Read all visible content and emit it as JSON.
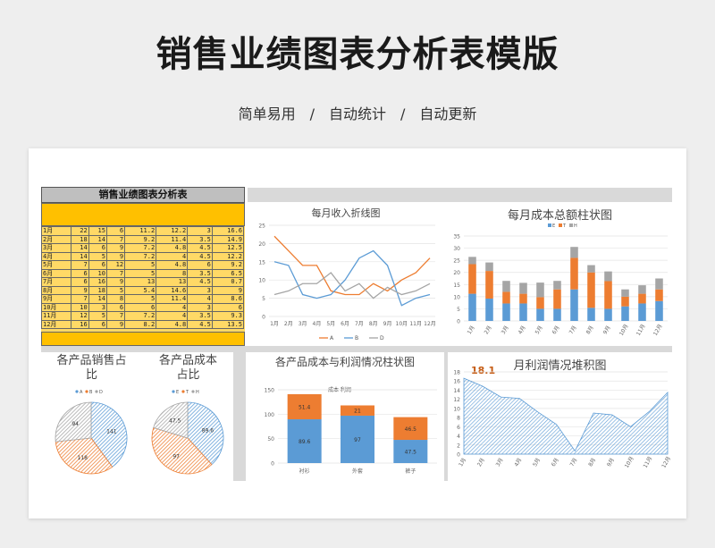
{
  "page": {
    "title": "销售业绩图表分析表模版",
    "subtitle": "简单易用　/　自动统计　/　自动更新"
  },
  "table": {
    "title": "销售业绩图表分析表",
    "rows": [
      [
        "1月",
        "22",
        "15",
        "6",
        "11.2",
        "12.2",
        "3",
        "16.6"
      ],
      [
        "2月",
        "18",
        "14",
        "7",
        "9.2",
        "11.4",
        "3.5",
        "14.9"
      ],
      [
        "3月",
        "14",
        "6",
        "9",
        "7.2",
        "4.8",
        "4.5",
        "12.5"
      ],
      [
        "4月",
        "14",
        "5",
        "9",
        "7.2",
        "4",
        "4.5",
        "12.2"
      ],
      [
        "5月",
        "7",
        "6",
        "12",
        "5",
        "4.8",
        "6",
        "9.2"
      ],
      [
        "6月",
        "6",
        "10",
        "7",
        "5",
        "8",
        "3.5",
        "6.5"
      ],
      [
        "7月",
        "6",
        "16",
        "9",
        "13",
        "13",
        "4.5",
        "0.7"
      ],
      [
        "8月",
        "9",
        "18",
        "5",
        "5.4",
        "14.6",
        "3",
        "9"
      ],
      [
        "9月",
        "7",
        "14",
        "8",
        "5",
        "11.4",
        "4",
        "8.6"
      ],
      [
        "10月",
        "10",
        "3",
        "6",
        "6",
        "4",
        "3",
        "6"
      ],
      [
        "11月",
        "12",
        "5",
        "7",
        "7.2",
        "4",
        "3.5",
        "9.3"
      ],
      [
        "12月",
        "16",
        "6",
        "9",
        "8.2",
        "4.8",
        "4.5",
        "13.5"
      ]
    ]
  },
  "charts": {
    "income_line": {
      "title": "每月收入折线图"
    },
    "cost_bar": {
      "title": "每月成本总额柱状图"
    },
    "sales_pie": {
      "title": "各产品销售占比"
    },
    "cost_pie": {
      "title": "各产品成本占比"
    },
    "product_stack": {
      "title": "各产品成本与利润情况柱状图",
      "legend": "成本 利润"
    },
    "profit_area": {
      "title": "月利润情况堆积图",
      "highlight": "18.1"
    }
  },
  "chart_data": [
    {
      "type": "line",
      "title": "每月收入折线图",
      "x": [
        "1月",
        "2月",
        "3月",
        "4月",
        "5月",
        "6月",
        "7月",
        "8月",
        "9月",
        "10月",
        "11月",
        "12月"
      ],
      "ylim": [
        0,
        25
      ],
      "yticks": [
        0,
        5,
        10,
        15,
        20,
        25
      ],
      "series": [
        {
          "name": "A",
          "color": "#ed7d31",
          "values": [
            22,
            18,
            14,
            14,
            7,
            6,
            6,
            9,
            7,
            10,
            12,
            16
          ]
        },
        {
          "name": "B",
          "color": "#5b9bd5",
          "values": [
            15,
            14,
            6,
            5,
            6,
            10,
            16,
            18,
            14,
            3,
            5,
            6
          ]
        },
        {
          "name": "D",
          "color": "#a5a5a5",
          "values": [
            6,
            7,
            9,
            9,
            12,
            7,
            9,
            5,
            8,
            6,
            7,
            9
          ]
        }
      ],
      "legend": "bottom"
    },
    {
      "type": "bar",
      "title": "每月成本总额柱状图",
      "x": [
        "1月",
        "2月",
        "3月",
        "4月",
        "5月",
        "6月",
        "7月",
        "8月",
        "9月",
        "10月",
        "11月",
        "12月"
      ],
      "ylim": [
        0,
        35
      ],
      "yticks": [
        0,
        5,
        10,
        15,
        20,
        25,
        30,
        35
      ],
      "stacked": true,
      "series": [
        {
          "name": "E",
          "color": "#5b9bd5",
          "values": [
            11.2,
            9.2,
            7.2,
            7.2,
            5,
            5,
            13,
            5.4,
            5,
            6,
            7.2,
            8.2
          ]
        },
        {
          "name": "T",
          "color": "#ed7d31",
          "values": [
            12.2,
            11.4,
            4.8,
            4,
            4.8,
            8,
            13,
            14.6,
            11.4,
            4,
            4,
            4.8
          ]
        },
        {
          "name": "H",
          "color": "#a5a5a5",
          "values": [
            3,
            3.5,
            4.5,
            4.5,
            6,
            3.5,
            4.5,
            3,
            4,
            3,
            3.5,
            4.5
          ]
        }
      ],
      "legend": "top"
    },
    {
      "type": "pie",
      "title": "各产品销售占比",
      "labels": [
        "A",
        "B",
        "D"
      ],
      "values": [
        141,
        118,
        94
      ],
      "colors": [
        "#5b9bd5",
        "#ed7d31",
        "#a5a5a5"
      ]
    },
    {
      "type": "pie",
      "title": "各产品成本占比",
      "labels": [
        "E",
        "T",
        "H"
      ],
      "values": [
        89.6,
        97,
        47.5
      ],
      "colors": [
        "#5b9bd5",
        "#ed7d31",
        "#a5a5a5"
      ]
    },
    {
      "type": "bar",
      "title": "各产品成本与利润情况柱状图",
      "categories": [
        "衬衫",
        "外套",
        "裤子"
      ],
      "stacked": true,
      "ylim": [
        0,
        150
      ],
      "yticks": [
        0,
        50,
        100,
        150
      ],
      "series": [
        {
          "name": "成本",
          "color": "#5b9bd5",
          "values": [
            89.6,
            97,
            47.5
          ]
        },
        {
          "name": "利润",
          "color": "#ed7d31",
          "values": [
            51.4,
            21,
            46.5
          ]
        }
      ]
    },
    {
      "type": "area",
      "title": "月利润情况堆积图",
      "x": [
        "1月",
        "2月",
        "3月",
        "4月",
        "5月",
        "6月",
        "7月",
        "8月",
        "9月",
        "10月",
        "11月",
        "12月"
      ],
      "ylim": [
        0,
        18
      ],
      "yticks": [
        0,
        2,
        4,
        6,
        8,
        10,
        12,
        14,
        16,
        18
      ],
      "values": [
        16.6,
        14.9,
        12.5,
        12.2,
        9.2,
        6.5,
        0.7,
        9,
        8.6,
        6,
        9.3,
        13.5
      ],
      "color": "#5b9bd5",
      "annotation": "18.1"
    }
  ]
}
